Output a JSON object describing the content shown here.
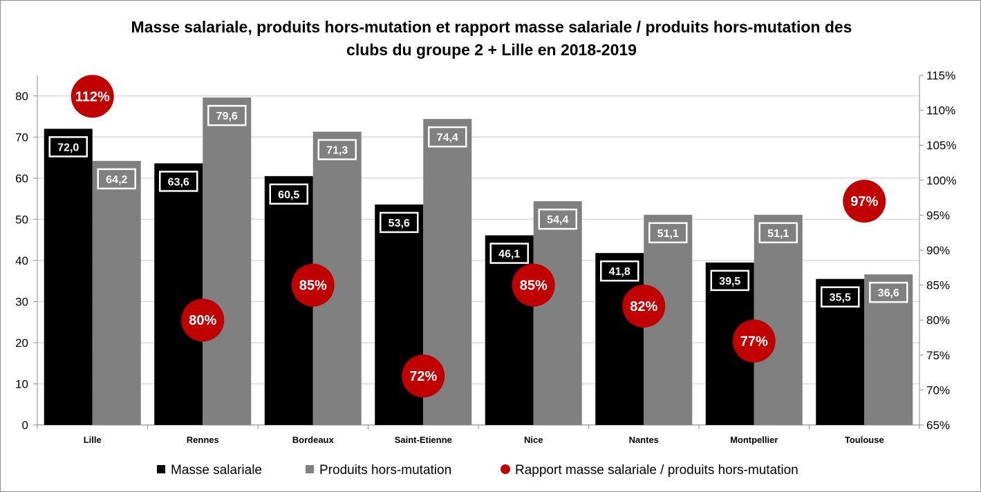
{
  "chart_data": {
    "type": "bar",
    "title_line1": "Masse salariale, produits hors-mutation et rapport masse salariale / produits hors-mutation des",
    "title_line2": "clubs du groupe 2 + Lille en 2018-2019",
    "categories": [
      "Lille",
      "Rennes",
      "Bordeaux",
      "Saint-Etienne",
      "Nice",
      "Nantes",
      "Montpellier",
      "Toulouse"
    ],
    "series": [
      {
        "name": "Masse salariale",
        "values": [
          72.0,
          63.6,
          60.5,
          53.6,
          46.1,
          41.8,
          39.5,
          35.5
        ],
        "labels": [
          "72,0",
          "63,6",
          "60,5",
          "53,6",
          "46,1",
          "41,8",
          "39,5",
          "35,5"
        ],
        "color": "#000000"
      },
      {
        "name": "Produits hors-mutation",
        "values": [
          64.2,
          79.6,
          71.3,
          74.4,
          54.4,
          51.1,
          51.1,
          36.6
        ],
        "labels": [
          "64,2",
          "79,6",
          "71,3",
          "74,4",
          "54,4",
          "51,1",
          "51,1",
          "36,6"
        ],
        "color": "#808080"
      }
    ],
    "ratio_series": {
      "name": "Rapport masse salariale / produits hors-mutation",
      "values": [
        112,
        80,
        85,
        72,
        85,
        82,
        77,
        97
      ],
      "labels": [
        "112%",
        "80%",
        "85%",
        "72%",
        "85%",
        "82%",
        "77%",
        "97%"
      ],
      "color": "#c00000"
    },
    "y_left": {
      "min": 0,
      "max": 85,
      "ticks": [
        0,
        10,
        20,
        30,
        40,
        50,
        60,
        70,
        80
      ],
      "tick_labels": [
        "0",
        "10",
        "20",
        "30",
        "40",
        "50",
        "60",
        "70",
        "80"
      ]
    },
    "y_right": {
      "min": 65,
      "max": 115,
      "ticks": [
        65,
        70,
        75,
        80,
        85,
        90,
        95,
        100,
        105,
        110,
        115
      ],
      "tick_labels": [
        "65%",
        "70%",
        "75%",
        "80%",
        "85%",
        "90%",
        "95%",
        "100%",
        "105%",
        "110%",
        "115%"
      ]
    },
    "grid": true,
    "gridline_color": "#d9d9d9",
    "legend_position": "bottom"
  }
}
